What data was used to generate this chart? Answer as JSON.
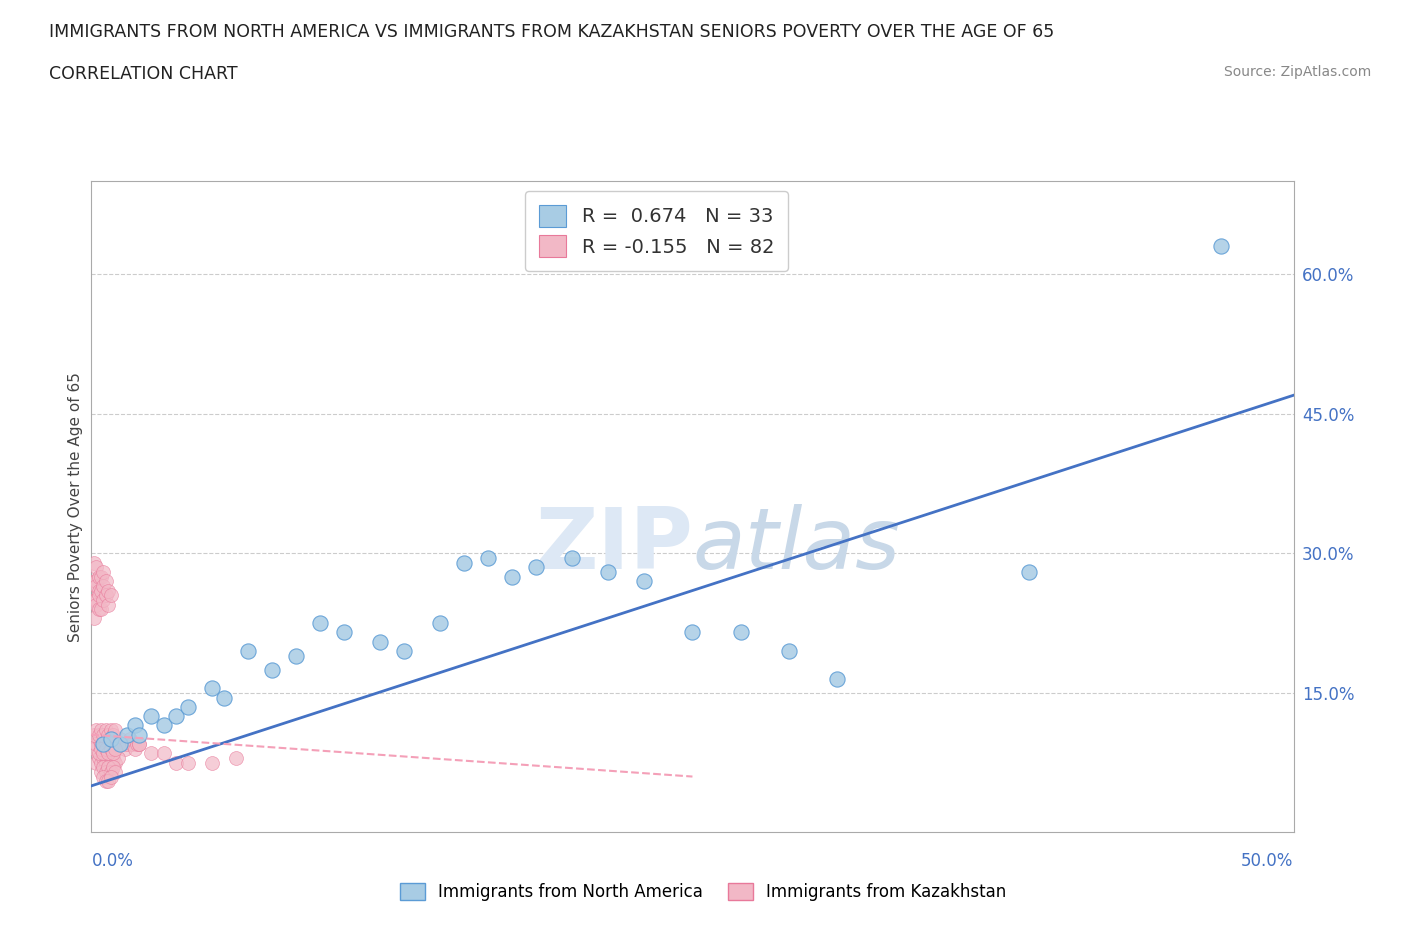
{
  "title_line1": "IMMIGRANTS FROM NORTH AMERICA VS IMMIGRANTS FROM KAZAKHSTAN SENIORS POVERTY OVER THE AGE OF 65",
  "title_line2": "CORRELATION CHART",
  "source_text": "Source: ZipAtlas.com",
  "ylabel": "Seniors Poverty Over the Age of 65",
  "xlim": [
    0.0,
    0.5
  ],
  "ylim": [
    0.0,
    0.7
  ],
  "ytick_labels_right": [
    "15.0%",
    "30.0%",
    "45.0%",
    "60.0%"
  ],
  "ytick_vals_right": [
    0.15,
    0.3,
    0.45,
    0.6
  ],
  "color_blue": "#a8cce4",
  "color_pink": "#f2b8c6",
  "color_blue_edge": "#5b9bd5",
  "color_pink_edge": "#e8799a",
  "color_trendline_blue": "#4472c4",
  "color_trendline_pink": "#f4a0b8",
  "na_x": [
    0.005,
    0.008,
    0.012,
    0.015,
    0.018,
    0.02,
    0.025,
    0.03,
    0.035,
    0.04,
    0.05,
    0.055,
    0.065,
    0.075,
    0.085,
    0.095,
    0.105,
    0.12,
    0.13,
    0.145,
    0.155,
    0.165,
    0.175,
    0.185,
    0.2,
    0.215,
    0.23,
    0.25,
    0.27,
    0.29,
    0.31,
    0.39,
    0.47
  ],
  "na_y": [
    0.095,
    0.1,
    0.095,
    0.105,
    0.115,
    0.105,
    0.125,
    0.115,
    0.125,
    0.135,
    0.155,
    0.145,
    0.195,
    0.175,
    0.19,
    0.225,
    0.215,
    0.205,
    0.195,
    0.225,
    0.29,
    0.295,
    0.275,
    0.285,
    0.295,
    0.28,
    0.27,
    0.215,
    0.215,
    0.195,
    0.165,
    0.28,
    0.63
  ],
  "kaz_x_dense": [
    0.001,
    0.002,
    0.003,
    0.004,
    0.005,
    0.006,
    0.007,
    0.008,
    0.009,
    0.01,
    0.011,
    0.012,
    0.013,
    0.014,
    0.015,
    0.016,
    0.017,
    0.018,
    0.019,
    0.02,
    0.001,
    0.002,
    0.003,
    0.004,
    0.005,
    0.006,
    0.007,
    0.008,
    0.009,
    0.01,
    0.002,
    0.003,
    0.004,
    0.005,
    0.006,
    0.007,
    0.008,
    0.009,
    0.01,
    0.011,
    0.003,
    0.004,
    0.005,
    0.006,
    0.007,
    0.008,
    0.009,
    0.01,
    0.004,
    0.005,
    0.006,
    0.007,
    0.008,
    0.009,
    0.01,
    0.005,
    0.006,
    0.007,
    0.008,
    0.02,
    0.025,
    0.03,
    0.035,
    0.04,
    0.05,
    0.06
  ],
  "kaz_y_dense": [
    0.09,
    0.095,
    0.1,
    0.095,
    0.09,
    0.095,
    0.1,
    0.095,
    0.09,
    0.095,
    0.095,
    0.1,
    0.095,
    0.09,
    0.095,
    0.1,
    0.095,
    0.09,
    0.095,
    0.095,
    0.105,
    0.11,
    0.105,
    0.11,
    0.105,
    0.11,
    0.105,
    0.11,
    0.105,
    0.11,
    0.075,
    0.08,
    0.075,
    0.08,
    0.075,
    0.08,
    0.075,
    0.08,
    0.075,
    0.08,
    0.085,
    0.09,
    0.085,
    0.09,
    0.085,
    0.09,
    0.085,
    0.09,
    0.065,
    0.07,
    0.065,
    0.07,
    0.065,
    0.07,
    0.065,
    0.06,
    0.055,
    0.055,
    0.06,
    0.095,
    0.085,
    0.085,
    0.075,
    0.075,
    0.075,
    0.08
  ],
  "kaz_x_spread": [
    0.001,
    0.001,
    0.001,
    0.001,
    0.002,
    0.002,
    0.002,
    0.002,
    0.002,
    0.003,
    0.003,
    0.003,
    0.003,
    0.004,
    0.004,
    0.004,
    0.005,
    0.005,
    0.005,
    0.006,
    0.006,
    0.007,
    0.007,
    0.008
  ],
  "kaz_y_spread": [
    0.27,
    0.25,
    0.23,
    0.29,
    0.27,
    0.25,
    0.285,
    0.245,
    0.265,
    0.26,
    0.24,
    0.275,
    0.255,
    0.26,
    0.24,
    0.275,
    0.25,
    0.265,
    0.28,
    0.255,
    0.27,
    0.26,
    0.245,
    0.255
  ],
  "trend_blue_x0": 0.0,
  "trend_blue_y0": 0.05,
  "trend_blue_x1": 0.5,
  "trend_blue_y1": 0.47,
  "trend_pink_x0": 0.0,
  "trend_pink_y0": 0.105,
  "trend_pink_x1": 0.25,
  "trend_pink_y1": 0.06
}
